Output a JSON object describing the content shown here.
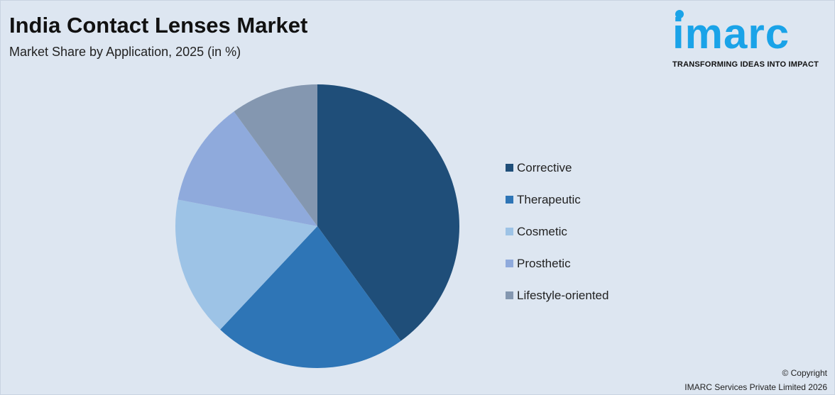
{
  "header": {
    "title": "India Contact Lenses Market",
    "subtitle": "Market Share by Application, 2025 (in %)"
  },
  "logo": {
    "word": "imarc",
    "tagline": "TRANSFORMING IDEAS INTO IMPACT"
  },
  "footer": {
    "copyright": "© Copyright",
    "company": "IMARC Services Private Limited 2026"
  },
  "chart_data": {
    "type": "pie",
    "title": "India Contact Lenses Market",
    "subtitle": "Market Share by Application, 2025 (in %)",
    "legend_position": "right",
    "categories": [
      "Corrective",
      "Therapeutic",
      "Cosmetic",
      "Prosthetic",
      "Lifestyle-oriented"
    ],
    "values": [
      40,
      22,
      16,
      12,
      10
    ],
    "colors": [
      "#1f4e79",
      "#2e75b6",
      "#9dc3e6",
      "#8faadc",
      "#8497b0"
    ]
  }
}
